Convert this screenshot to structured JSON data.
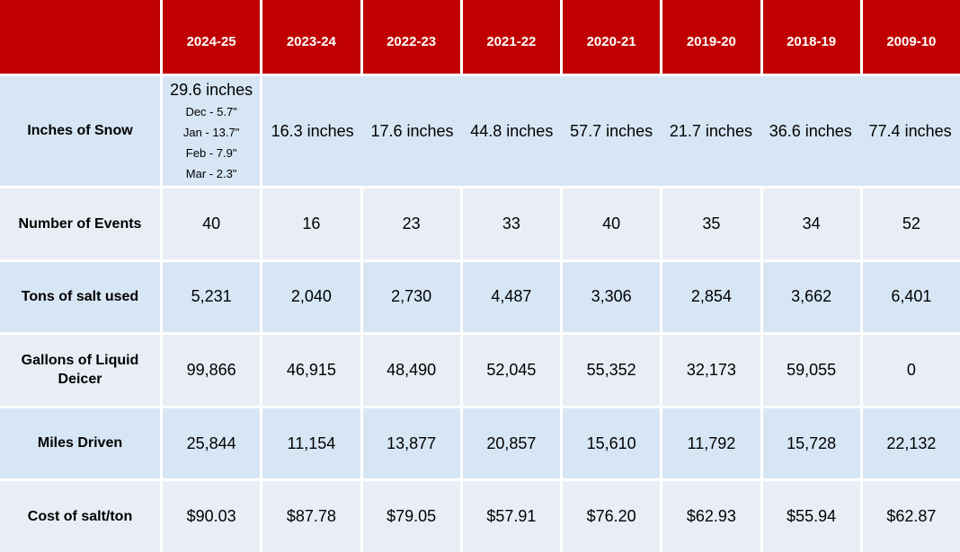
{
  "colors": {
    "header_bg": "#C00000",
    "header_text": "#FFFFFF",
    "row_dark_bg": "#D7E6F4",
    "row_light_bg": "#E9EEF6",
    "separator": "#FFFFFF",
    "body_text": "#000000"
  },
  "table": {
    "columns": [
      "2024-25",
      "2023-24",
      "2022-23",
      "2021-22",
      "2020-21",
      "2019-20",
      "2018-19",
      "2009-10"
    ],
    "snow_row": {
      "label": "Inches of Snow",
      "first_cell": {
        "total": "29.6 inches",
        "monthly": [
          "Dec - 5.7\"",
          "Jan - 13.7\"",
          "Feb - 7.9\"",
          "Mar - 2.3\""
        ]
      },
      "rest": [
        "16.3 inches",
        "17.6 inches",
        "44.8 inches",
        "57.7 inches",
        "21.7 inches",
        "36.6 inches",
        "77.4 inches"
      ]
    },
    "rows": [
      {
        "label": "Number of Events",
        "values": [
          "40",
          "16",
          "23",
          "33",
          "40",
          "35",
          "34",
          "52"
        ]
      },
      {
        "label": "Tons of salt used",
        "values": [
          "5,231",
          "2,040",
          "2,730",
          "4,487",
          "3,306",
          "2,854",
          "3,662",
          "6,401"
        ]
      },
      {
        "label": "Gallons of Liquid Deicer",
        "values": [
          "99,866",
          "46,915",
          "48,490",
          "52,045",
          "55,352",
          "32,173",
          "59,055",
          "0"
        ]
      },
      {
        "label": "Miles Driven",
        "values": [
          "25,844",
          "11,154",
          "13,877",
          "20,857",
          "15,610",
          "11,792",
          "15,728",
          "22,132"
        ]
      },
      {
        "label": "Cost of salt/ton",
        "values": [
          "$90.03",
          "$87.78",
          "$79.05",
          "$57.91",
          "$76.20",
          "$62.93",
          "$55.94",
          "$62.87"
        ]
      }
    ]
  },
  "chart_data": {
    "type": "table",
    "categories": [
      "2024-25",
      "2023-24",
      "2022-23",
      "2021-22",
      "2020-21",
      "2019-20",
      "2018-19",
      "2009-10"
    ],
    "series": [
      {
        "name": "Inches of Snow",
        "values": [
          29.6,
          16.3,
          17.6,
          44.8,
          57.7,
          21.7,
          36.6,
          77.4
        ]
      },
      {
        "name": "Number of Events",
        "values": [
          40,
          16,
          23,
          33,
          40,
          35,
          34,
          52
        ]
      },
      {
        "name": "Tons of salt used",
        "values": [
          5231,
          2040,
          2730,
          4487,
          3306,
          2854,
          3662,
          6401
        ]
      },
      {
        "name": "Gallons of Liquid Deicer",
        "values": [
          99866,
          46915,
          48490,
          52045,
          55352,
          32173,
          59055,
          0
        ]
      },
      {
        "name": "Miles Driven",
        "values": [
          25844,
          11154,
          13877,
          20857,
          15610,
          11792,
          15728,
          22132
        ]
      },
      {
        "name": "Cost of salt/ton",
        "values": [
          90.03,
          87.78,
          79.05,
          57.91,
          76.2,
          62.93,
          55.94,
          62.87
        ]
      }
    ],
    "annotations": {
      "snow_2024_25_monthly_breakdown": {
        "Dec": 5.7,
        "Jan": 13.7,
        "Feb": 7.9,
        "Mar": 2.3
      }
    },
    "title": "",
    "legend_position": "none",
    "grid": false
  }
}
